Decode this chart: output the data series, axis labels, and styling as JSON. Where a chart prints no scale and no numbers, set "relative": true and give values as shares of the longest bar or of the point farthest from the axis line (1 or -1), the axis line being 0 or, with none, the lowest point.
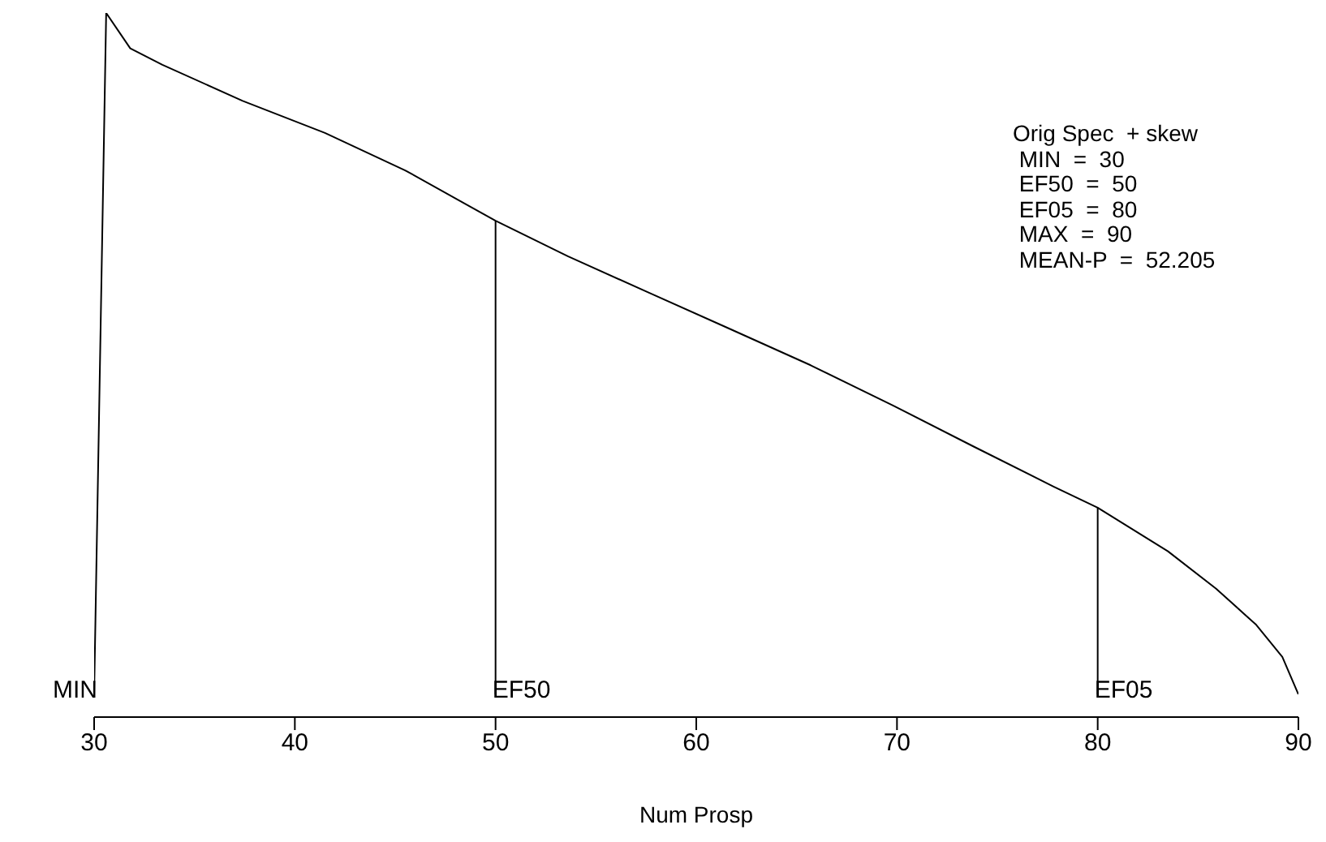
{
  "chart_data": {
    "type": "line",
    "relative": true,
    "xlabel": "Num Prosp",
    "xlim": [
      30,
      90
    ],
    "xticks": [
      30,
      40,
      50,
      60,
      70,
      80,
      90
    ],
    "marker": "none",
    "line_style": "solid",
    "series": [
      {
        "color": "#000000",
        "x": [
          30,
          30.6,
          31.8,
          33.4,
          37.4,
          41.5,
          45.5,
          50,
          53.6,
          57.6,
          61.7,
          65.7,
          69.8,
          73.8,
          77.8,
          80,
          83.5,
          85.9,
          87.9,
          89.2,
          90
        ],
        "values": [
          0,
          1,
          0.948,
          0.924,
          0.871,
          0.824,
          0.769,
          0.695,
          0.643,
          0.59,
          0.536,
          0.483,
          0.424,
          0.364,
          0.305,
          0.274,
          0.21,
          0.155,
          0.102,
          0.055,
          0
        ]
      },
      {
        "color": "#000000",
        "x": [
          50,
          50
        ],
        "values": [
          0,
          0.695
        ]
      },
      {
        "color": "#000000",
        "x": [
          80,
          80
        ],
        "values": [
          0,
          0.274
        ]
      }
    ],
    "annotations": [
      {
        "text": "MIN",
        "x": 30,
        "y": 0
      },
      {
        "text": "EF50",
        "x": 50,
        "y": 0
      },
      {
        "text": "EF05",
        "x": 80,
        "y": 0
      },
      "Orig Spec  + skew",
      " MIN  =  30",
      " EF50  =  50",
      " EF05  =  80",
      " MAX  =  90",
      " MEAN-P  =  52.205"
    ]
  }
}
